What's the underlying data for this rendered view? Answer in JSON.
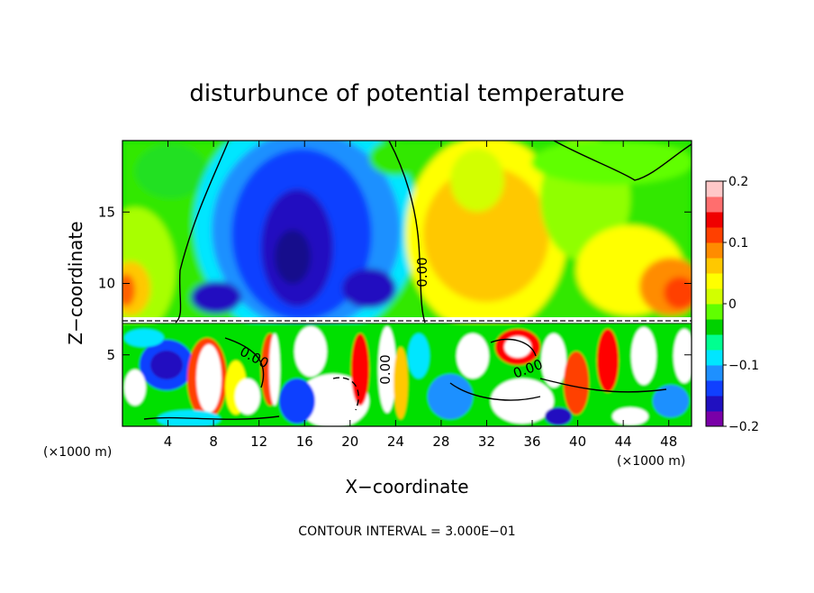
{
  "chart_data": {
    "type": "heatmap",
    "title": "disturbunce of potential temperature",
    "xlabel": "X−coordinate",
    "ylabel": "Z−coordinate",
    "x_unit_left": "(×1000 m)",
    "x_unit_right": "(×1000 m)",
    "xlim": [
      0,
      50
    ],
    "ylim": [
      0,
      20
    ],
    "x_ticks": [
      4,
      8,
      12,
      16,
      20,
      24,
      28,
      32,
      36,
      40,
      44,
      48
    ],
    "x_tick_labels": [
      "4",
      "8",
      "12",
      "16",
      "20",
      "24",
      "28",
      "32",
      "36",
      "40",
      "44",
      "48"
    ],
    "y_ticks": [
      5,
      10,
      15
    ],
    "y_tick_labels": [
      "5",
      "10",
      "15"
    ],
    "colorbar": {
      "range": [
        -0.2,
        0.2
      ],
      "ticks": [
        0.2,
        0.1,
        0,
        -0.1,
        -0.2
      ],
      "tick_labels": [
        "0.2",
        "0.1",
        "0",
        "−0.1",
        "−0.2"
      ],
      "colors": [
        "#7a00a8",
        "#2010c0",
        "#1040ff",
        "#1e90ff",
        "#00e6ff",
        "#00ff90",
        "#00d200",
        "#60ff00",
        "#d2ff00",
        "#ffff00",
        "#ffc800",
        "#ff8c00",
        "#ff4000",
        "#f00000",
        "#ff6e6e",
        "#ffc8c8"
      ]
    },
    "contour_labels": [
      "0.00",
      "0.00",
      "0.00",
      "0.00"
    ],
    "footer": "CONTOUR INTERVAL = 3.000E−01"
  }
}
